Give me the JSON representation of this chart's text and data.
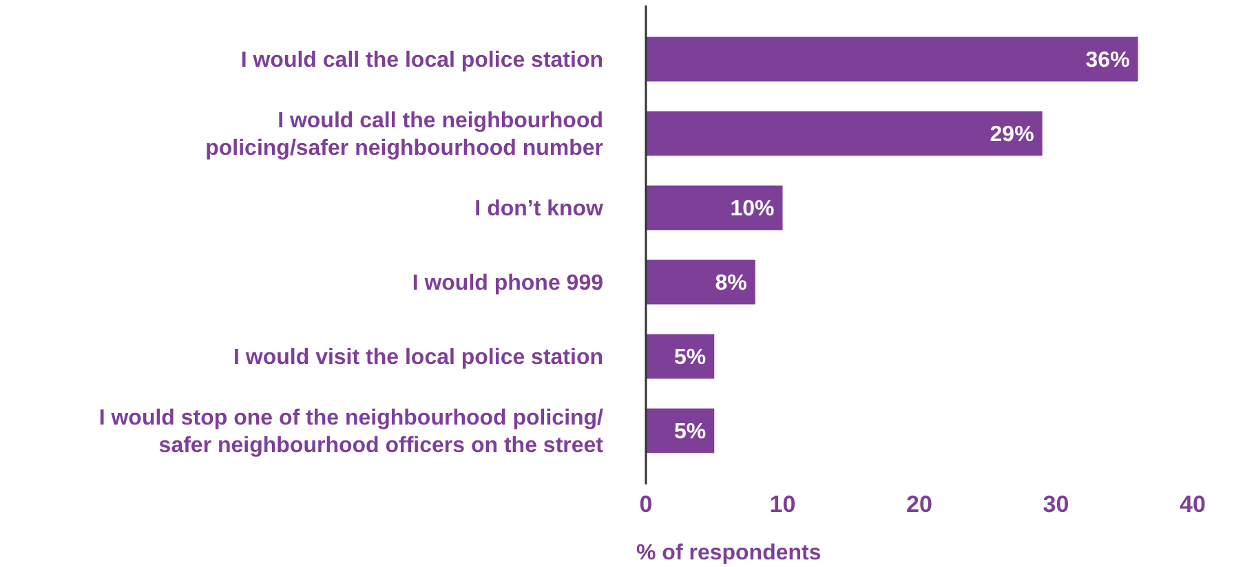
{
  "chart_data": {
    "type": "bar",
    "orientation": "horizontal",
    "xlabel": "% of respondents",
    "categories": [
      "I would call the local police station",
      "I would call the neighbourhood\npolicing/safer neighbourhood number",
      "I don’t know",
      "I would phone 999",
      "I would visit the local police station",
      "I would stop one of the neighbourhood policing/\nsafer neighbourhood officers on the street"
    ],
    "values": [
      36,
      29,
      10,
      8,
      5,
      5
    ],
    "value_labels": [
      "36%",
      "29%",
      "10%",
      "8%",
      "5%",
      "5%"
    ],
    "color": "#7d3f98",
    "xlim": [
      0,
      40
    ],
    "xticks": [
      0,
      10,
      20,
      30,
      40
    ]
  }
}
